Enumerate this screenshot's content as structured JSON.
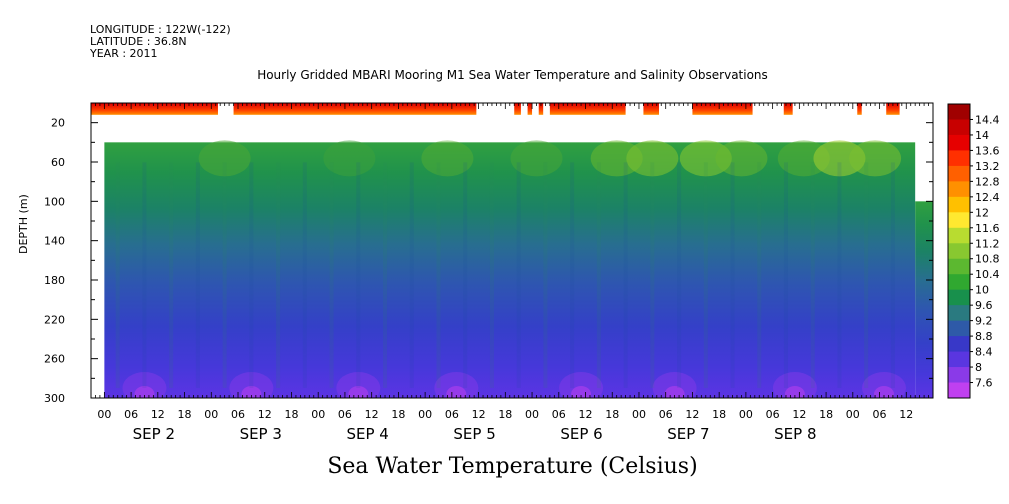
{
  "header": {
    "longitude": "LONGITUDE : 122W(-122)",
    "latitude": "LATITUDE : 36.8N",
    "year": "YEAR : 2011"
  },
  "chart_data": {
    "type": "heatmap",
    "title": "Hourly Gridded MBARI Mooring M1 Sea Water Temperature and Salinity Observations",
    "footer_label": "Sea Water Temperature (Celsius)",
    "ylabel": "DEPTH (m)",
    "ylim": [
      300,
      0
    ],
    "y_ticks": [
      20,
      60,
      100,
      140,
      180,
      220,
      260,
      300
    ],
    "x_hour_ticks": [
      "00",
      "06",
      "12",
      "18",
      "00",
      "06",
      "12",
      "18",
      "00",
      "06",
      "12",
      "18",
      "00",
      "06",
      "12",
      "18",
      "00",
      "06",
      "12",
      "18",
      "00",
      "06",
      "12",
      "18",
      "00",
      "06",
      "12",
      "18",
      "00",
      "06",
      "12"
    ],
    "x_day_labels": [
      "SEP 2",
      "SEP 3",
      "SEP 4",
      "SEP 5",
      "SEP 6",
      "SEP 7",
      "SEP 8"
    ],
    "colorbar": {
      "labels": [
        "14.4",
        "14",
        "13.6",
        "13.2",
        "12.8",
        "12.4",
        "12",
        "11.6",
        "11.2",
        "10.8",
        "10.4",
        "10",
        "9.6",
        "9.2",
        "8.8",
        "8.4",
        "8",
        "7.6"
      ],
      "colors": [
        "#a00000",
        "#c80000",
        "#e60000",
        "#ff3000",
        "#ff6000",
        "#ff9000",
        "#ffc000",
        "#ffe830",
        "#b8dc30",
        "#88c830",
        "#5cb830",
        "#30a830",
        "#18904c",
        "#2a7a80",
        "#2e5aa8",
        "#3838c8",
        "#5a36e0",
        "#8a3ae8",
        "#c040f0"
      ],
      "range": [
        7.6,
        14.4
      ]
    },
    "surface_segments_hours": [
      [
        0,
        28.5
      ],
      [
        32,
        86.5
      ],
      [
        95,
        96.5
      ],
      [
        98,
        99
      ],
      [
        100.5,
        101.5
      ],
      [
        103,
        120
      ],
      [
        124,
        127.5
      ],
      [
        135,
        148.5
      ],
      [
        155.5,
        157.5
      ],
      [
        172,
        173
      ],
      [
        178.5,
        181.5
      ]
    ],
    "deep_data_top_depth": 40,
    "deep_data_end_note": "data below 40 m ends at SEP 8 14h; continues from 100 m to end",
    "x_start": "SEP 1 21:00",
    "x_end": "SEP 8 18:00"
  }
}
